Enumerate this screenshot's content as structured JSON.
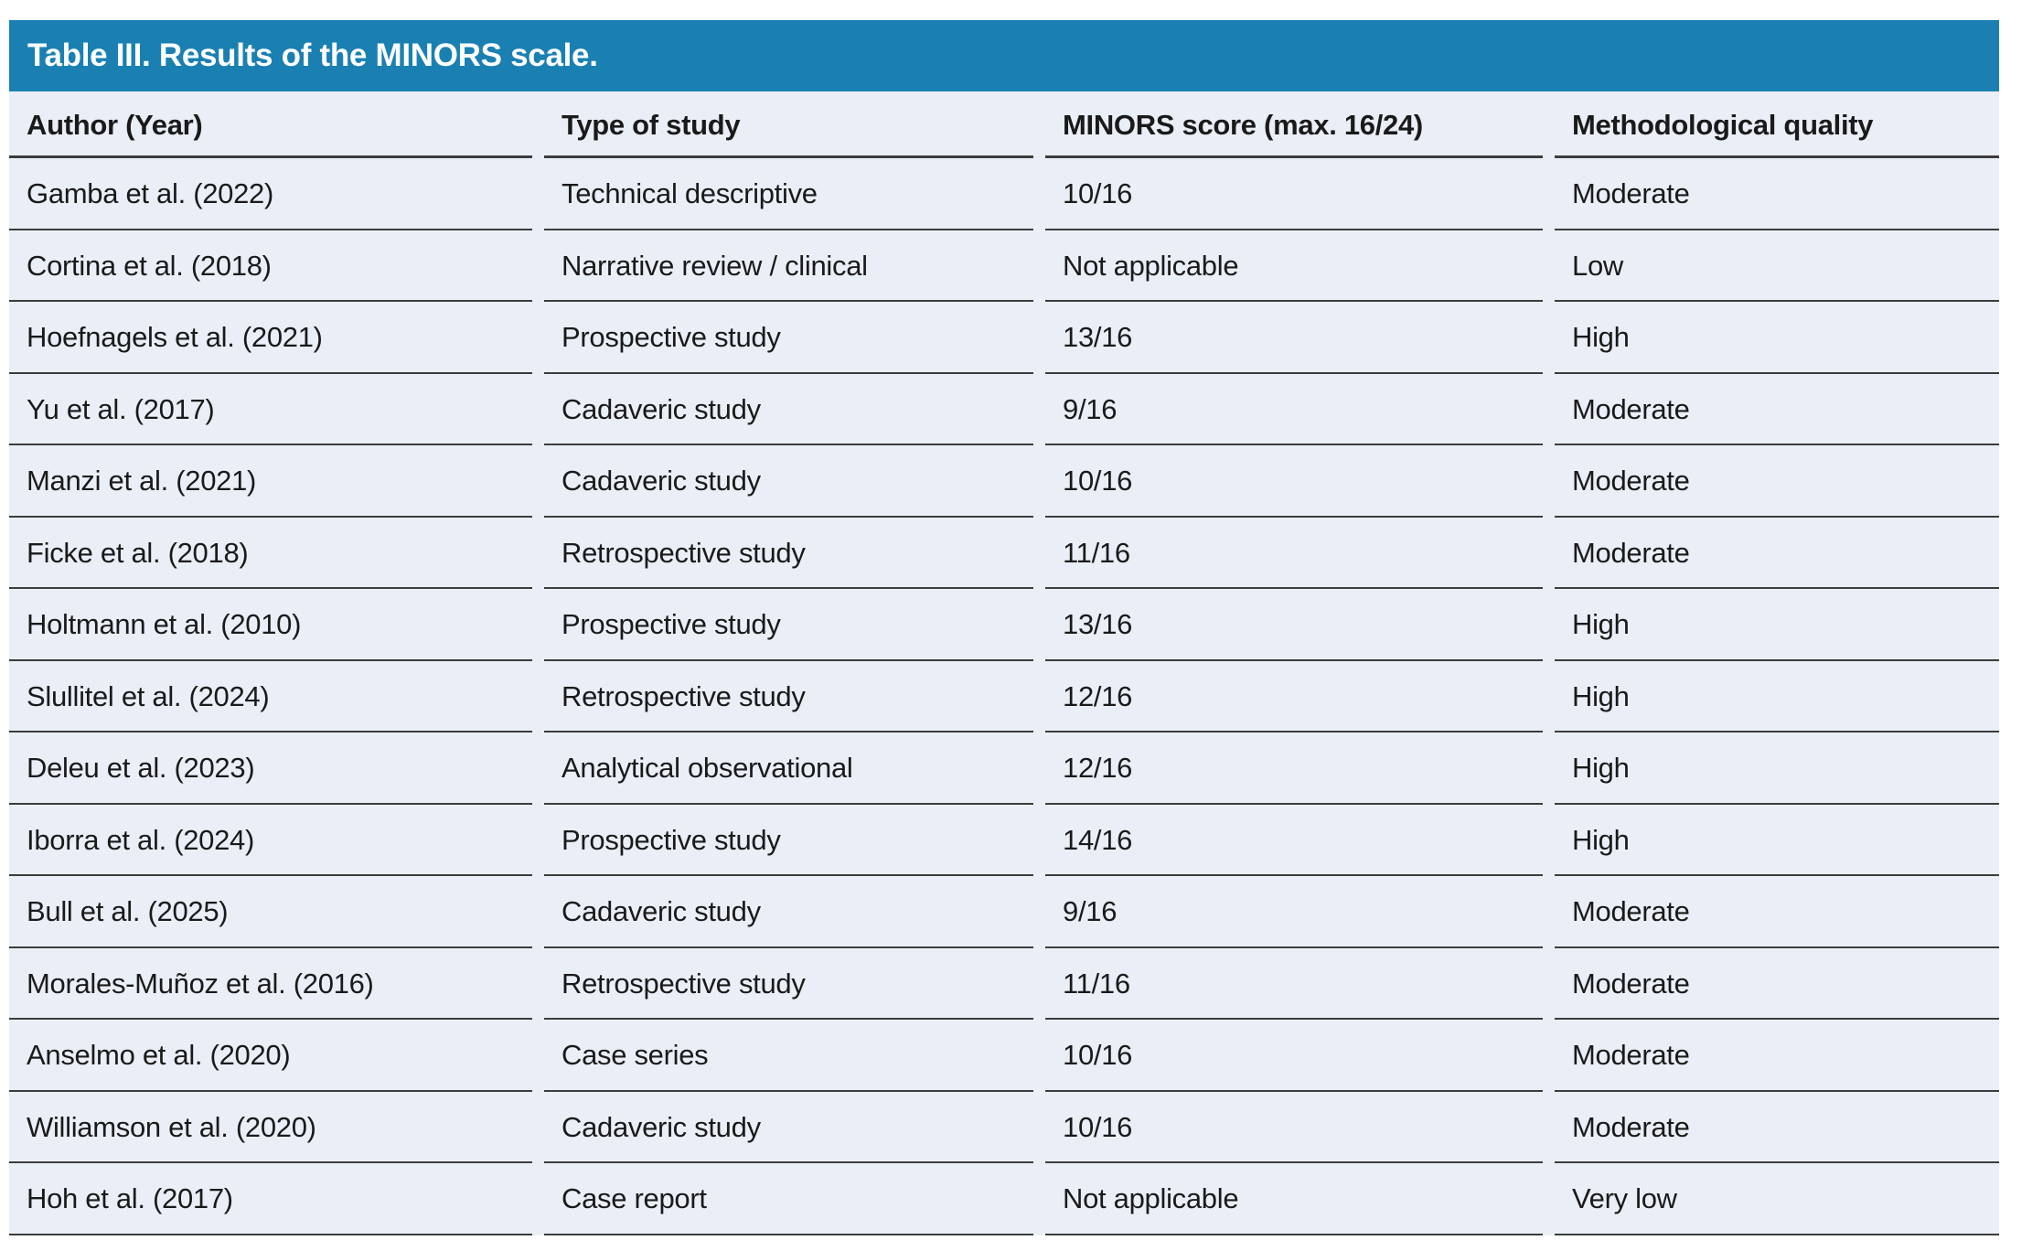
{
  "colors": {
    "title-bar-bg": "#1A80B2",
    "row-bg": "#EAEFF7",
    "divider-line": "#3C3C3C",
    "body-text": "#1A1A1A",
    "title-text": "#FFFFFF"
  },
  "table": {
    "title": "Table III. Results of the MINORS scale.",
    "columns": [
      "Author (Year)",
      "Type of study",
      "MINORS score (max. 16/24)",
      "Methodological quality"
    ],
    "rows": [
      {
        "author": "Gamba et al. (2022)",
        "type_of_study": "Technical descriptive",
        "minors_score": "10/16",
        "methodological_quality": "Moderate"
      },
      {
        "author": "Cortina et al. (2018)",
        "type_of_study": "Narrative review / clinical",
        "minors_score": "Not applicable",
        "methodological_quality": "Low"
      },
      {
        "author": "Hoefnagels et al. (2021)",
        "type_of_study": "Prospective study",
        "minors_score": "13/16",
        "methodological_quality": "High"
      },
      {
        "author": "Yu et al. (2017)",
        "type_of_study": "Cadaveric study",
        "minors_score": "9/16",
        "methodological_quality": "Moderate"
      },
      {
        "author": "Manzi et al. (2021)",
        "type_of_study": "Cadaveric study",
        "minors_score": "10/16",
        "methodological_quality": "Moderate"
      },
      {
        "author": "Ficke et al. (2018)",
        "type_of_study": "Retrospective study",
        "minors_score": "11/16",
        "methodological_quality": "Moderate"
      },
      {
        "author": "Holtmann et al. (2010)",
        "type_of_study": "Prospective study",
        "minors_score": "13/16",
        "methodological_quality": "High"
      },
      {
        "author": "Slullitel et al. (2024)",
        "type_of_study": "Retrospective study",
        "minors_score": "12/16",
        "methodological_quality": "High"
      },
      {
        "author": "Deleu et al. (2023)",
        "type_of_study": "Analytical observational",
        "minors_score": "12/16",
        "methodological_quality": "High"
      },
      {
        "author": "Iborra et al. (2024)",
        "type_of_study": "Prospective study",
        "minors_score": "14/16",
        "methodological_quality": "High"
      },
      {
        "author": "Bull et al. (2025)",
        "type_of_study": "Cadaveric study",
        "minors_score": "9/16",
        "methodological_quality": "Moderate"
      },
      {
        "author": "Morales-Muñoz et al. (2016)",
        "type_of_study": "Retrospective study",
        "minors_score": "11/16",
        "methodological_quality": "Moderate"
      },
      {
        "author": "Anselmo et al. (2020)",
        "type_of_study": "Case series",
        "minors_score": "10/16",
        "methodological_quality": "Moderate"
      },
      {
        "author": "Williamson et al. (2020)",
        "type_of_study": "Cadaveric study",
        "minors_score": "10/16",
        "methodological_quality": "Moderate"
      },
      {
        "author": "Hoh et al. (2017)",
        "type_of_study": "Case report",
        "minors_score": "Not applicable",
        "methodological_quality": "Very low"
      }
    ]
  }
}
